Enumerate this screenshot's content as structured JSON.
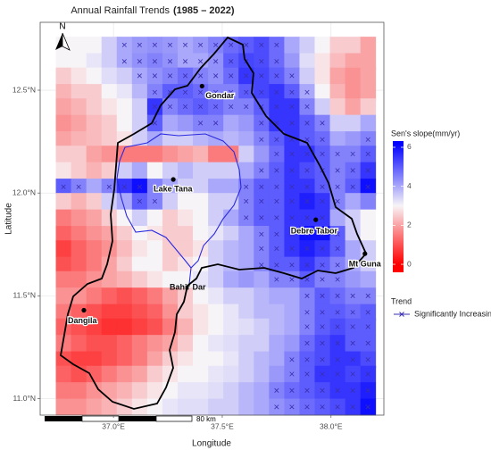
{
  "chart_data": {
    "type": "heatmap",
    "title": "Annual Rainfall Trends",
    "title_period": "(1985 – 2022)",
    "xlabel": "Longitude",
    "ylabel": "Latitude",
    "xlim": [
      36.663,
      38.243
    ],
    "ylim": [
      10.92,
      12.83
    ],
    "xticks": [
      {
        "value": 37.0,
        "label": "37.0°E"
      },
      {
        "value": 37.5,
        "label": "37.5°E"
      },
      {
        "value": 38.0,
        "label": "38.0°E"
      }
    ],
    "yticks": [
      {
        "value": 11.0,
        "label": "11.0°N"
      },
      {
        "value": 11.5,
        "label": "11.5°N"
      },
      {
        "value": 12.0,
        "label": "12.0°N"
      },
      {
        "value": 12.5,
        "label": "12.5°N"
      }
    ],
    "grid": true,
    "x": [
      36.77,
      36.84,
      36.91,
      36.98,
      37.05,
      37.12,
      37.19,
      37.26,
      37.33,
      37.4,
      37.47,
      37.54,
      37.61,
      37.68,
      37.75,
      37.82,
      37.89,
      37.96,
      38.03,
      38.1,
      38.17
    ],
    "y": [
      12.72,
      12.64,
      12.57,
      12.49,
      12.42,
      12.34,
      12.26,
      12.19,
      12.11,
      12.03,
      11.96,
      11.88,
      11.8,
      11.73,
      11.65,
      11.58,
      11.5,
      11.42,
      11.35,
      11.27,
      11.19,
      11.12,
      11.04,
      10.96
    ],
    "values": [
      [
        3,
        3,
        3,
        3.5,
        4,
        4.2,
        4.3,
        4.2,
        4,
        4.2,
        4.5,
        4.8,
        5,
        5.2,
        4.8,
        4,
        3.5,
        3,
        2.5,
        2.5,
        2
      ],
      [
        3,
        3,
        3.2,
        3.5,
        4,
        4.3,
        4.5,
        4.3,
        4,
        4,
        4.3,
        5,
        5.3,
        5.2,
        4.8,
        4.2,
        3.3,
        2.8,
        2.3,
        2,
        2
      ],
      [
        2.5,
        2.8,
        3,
        3.3,
        3.5,
        4,
        4.3,
        4.5,
        4.8,
        4.5,
        4.3,
        4.8,
        5.5,
        5.3,
        5,
        4.5,
        3.5,
        2.8,
        2,
        1.8,
        2
      ],
      [
        2.2,
        2.5,
        2.5,
        3,
        3.2,
        3.8,
        4.5,
        5,
        5,
        4.8,
        4.5,
        4.5,
        5,
        5.3,
        5.5,
        5,
        4,
        3,
        2.2,
        1.8,
        2
      ],
      [
        2,
        2.2,
        2.5,
        2.8,
        3,
        3.5,
        5.5,
        4.5,
        4.8,
        5,
        4.8,
        4.5,
        4.5,
        5,
        5.5,
        5.5,
        4.5,
        3.5,
        2.5,
        2,
        2.5
      ],
      [
        1.8,
        2,
        2.3,
        2.5,
        3,
        3.5,
        5,
        4,
        4.2,
        4.5,
        4.5,
        4,
        4.2,
        4.8,
        5.5,
        5.5,
        5,
        4.5,
        3.5,
        3.5,
        4
      ],
      [
        2,
        2.2,
        2.3,
        2.5,
        2.8,
        3.5,
        4,
        3.5,
        3.5,
        3.8,
        4,
        3.8,
        4,
        4.5,
        5,
        5.5,
        5,
        4.8,
        4,
        4.2,
        4.5
      ],
      [
        2.5,
        2.5,
        2,
        1.8,
        1.5,
        1.5,
        1.5,
        1.8,
        2,
        2.2,
        1.5,
        1.5,
        3.5,
        4.2,
        4.8,
        5.5,
        5.5,
        5,
        4.5,
        4.5,
        5
      ],
      [
        2.8,
        2.5,
        2.2,
        2.5,
        3.5,
        4,
        3,
        3.5,
        3.8,
        3.5,
        3.5,
        3.5,
        4,
        4.5,
        5,
        5.5,
        5.2,
        5,
        4.5,
        4.8,
        5.5
      ],
      [
        5,
        4.5,
        4,
        4.5,
        5.5,
        6,
        4.5,
        4,
        3.5,
        3.5,
        4,
        4,
        4.5,
        5,
        5,
        5.5,
        5.5,
        5,
        4.5,
        5,
        6
      ],
      [
        2.5,
        2.2,
        2.5,
        3.5,
        4,
        5,
        4.5,
        3.5,
        3,
        3,
        3.5,
        3.5,
        4.5,
        5,
        5,
        5.5,
        5.8,
        5.5,
        4.5,
        4,
        4.5
      ],
      [
        1.5,
        1.8,
        2,
        2.5,
        3,
        3.5,
        3,
        2.5,
        2.8,
        3,
        3.5,
        4,
        4.5,
        5,
        5,
        5.5,
        5.5,
        5.5,
        4,
        3.5,
        3
      ],
      [
        1.2,
        1.5,
        1.8,
        2,
        2.5,
        3,
        2.8,
        2.5,
        2.5,
        3,
        3.2,
        3.5,
        4,
        4.5,
        5,
        5.5,
        6,
        6,
        5,
        3.5,
        3
      ],
      [
        0.8,
        1.2,
        1.5,
        1.8,
        2.3,
        2.8,
        3,
        2.5,
        2.5,
        2.8,
        3.5,
        3.8,
        4,
        4.5,
        5,
        5.5,
        5.8,
        5.5,
        5,
        4,
        3.5
      ],
      [
        1,
        1.2,
        1.5,
        2,
        2.5,
        3,
        3,
        2.5,
        2.8,
        3,
        3.5,
        3.8,
        4,
        4.5,
        5,
        5,
        5.5,
        5,
        4.5,
        4,
        3.5
      ],
      [
        1.5,
        1.5,
        1.8,
        2,
        2.2,
        2.5,
        2.8,
        3,
        3,
        3.2,
        3.5,
        4,
        4.2,
        4,
        4.5,
        4.5,
        5,
        4.5,
        4.5,
        4.2,
        4
      ],
      [
        1.8,
        1.8,
        1.5,
        1.2,
        1,
        1.2,
        1.5,
        2,
        2.5,
        3,
        3.2,
        3.5,
        3.5,
        3.8,
        4,
        4,
        4.5,
        5,
        4.8,
        4.5,
        4.5
      ],
      [
        1.5,
        1.2,
        1,
        0.8,
        0.8,
        1,
        1.2,
        1.8,
        2.5,
        2.8,
        3,
        3.2,
        3.5,
        3.8,
        3.8,
        4,
        4.5,
        5,
        5,
        4.8,
        5
      ],
      [
        1.2,
        1,
        0.8,
        0.6,
        0.6,
        0.8,
        1,
        1.5,
        2.2,
        2.8,
        3,
        3.2,
        3.3,
        3.5,
        3.8,
        4,
        4.5,
        5,
        5.2,
        5,
        5
      ],
      [
        1.5,
        1.2,
        1,
        1,
        1.2,
        1.5,
        1.8,
        2,
        2.5,
        3,
        3.2,
        3.3,
        3.5,
        3.5,
        4,
        4.2,
        4.8,
        5.2,
        5.5,
        5,
        5
      ],
      [
        1,
        0.8,
        0.8,
        1,
        1.2,
        1.5,
        2,
        2.5,
        2.8,
        3,
        3,
        3.2,
        3.5,
        3.8,
        4,
        4.5,
        5,
        5.2,
        5.5,
        5.5,
        5.2
      ],
      [
        1.2,
        1,
        1.2,
        1.5,
        1.8,
        2,
        2.5,
        2.8,
        3,
        3,
        3.2,
        3.3,
        3.5,
        3.8,
        4.2,
        4.5,
        5,
        5.5,
        5.5,
        5.3,
        5.5
      ],
      [
        1.5,
        1.5,
        1.8,
        2,
        2.2,
        2.5,
        2.8,
        3,
        3.2,
        3.2,
        3.3,
        3.5,
        3.8,
        4,
        4.5,
        4.8,
        5,
        5.2,
        5.5,
        5.5,
        5.8
      ],
      [
        1.8,
        1.8,
        2,
        2.2,
        2.5,
        2.8,
        3,
        3.2,
        3.3,
        3.3,
        3.5,
        3.5,
        3.8,
        4,
        4.3,
        4.5,
        4.8,
        5,
        5.2,
        5.5,
        6
      ]
    ],
    "significant": [
      [
        0,
        0,
        0,
        0,
        1,
        1,
        1,
        1,
        1,
        1,
        1,
        1,
        1,
        1,
        1,
        0,
        0,
        0,
        0,
        0,
        0
      ],
      [
        0,
        0,
        0,
        0,
        1,
        1,
        1,
        1,
        1,
        1,
        1,
        1,
        1,
        1,
        1,
        0,
        0,
        0,
        0,
        0,
        0
      ],
      [
        0,
        0,
        0,
        0,
        0,
        1,
        1,
        1,
        1,
        1,
        1,
        1,
        1,
        1,
        1,
        1,
        0,
        0,
        0,
        0,
        0
      ],
      [
        0,
        0,
        0,
        0,
        0,
        0,
        1,
        1,
        1,
        1,
        1,
        1,
        1,
        1,
        1,
        1,
        1,
        0,
        0,
        0,
        0
      ],
      [
        0,
        0,
        0,
        0,
        0,
        0,
        1,
        1,
        1,
        1,
        1,
        1,
        1,
        1,
        1,
        1,
        1,
        0,
        0,
        0,
        0
      ],
      [
        0,
        0,
        0,
        0,
        0,
        0,
        1,
        0,
        0,
        1,
        1,
        0,
        0,
        1,
        1,
        1,
        1,
        1,
        0,
        0,
        0
      ],
      [
        0,
        0,
        0,
        0,
        0,
        0,
        0,
        0,
        0,
        0,
        0,
        0,
        0,
        1,
        1,
        1,
        1,
        1,
        0,
        0,
        1
      ],
      [
        0,
        0,
        0,
        0,
        0,
        0,
        0,
        0,
        0,
        0,
        0,
        0,
        0,
        0,
        1,
        1,
        1,
        1,
        1,
        1,
        1
      ],
      [
        0,
        0,
        0,
        0,
        0,
        0,
        0,
        0,
        0,
        0,
        0,
        0,
        0,
        1,
        1,
        1,
        1,
        1,
        1,
        1,
        1
      ],
      [
        1,
        1,
        0,
        1,
        1,
        1,
        1,
        0,
        0,
        0,
        0,
        0,
        1,
        1,
        1,
        1,
        1,
        1,
        1,
        1,
        1
      ],
      [
        0,
        0,
        0,
        0,
        0,
        1,
        1,
        0,
        0,
        0,
        0,
        0,
        1,
        1,
        1,
        1,
        1,
        1,
        1,
        0,
        0
      ],
      [
        0,
        0,
        0,
        0,
        0,
        0,
        0,
        0,
        0,
        0,
        0,
        0,
        1,
        1,
        1,
        1,
        1,
        1,
        0,
        0,
        0
      ],
      [
        0,
        0,
        0,
        0,
        0,
        0,
        0,
        0,
        0,
        0,
        0,
        0,
        0,
        1,
        1,
        1,
        1,
        1,
        1,
        0,
        0
      ],
      [
        0,
        0,
        0,
        0,
        0,
        0,
        0,
        0,
        0,
        0,
        0,
        0,
        0,
        1,
        1,
        1,
        1,
        1,
        1,
        0,
        0
      ],
      [
        0,
        0,
        0,
        0,
        0,
        0,
        0,
        0,
        0,
        0,
        0,
        0,
        0,
        1,
        1,
        1,
        1,
        1,
        1,
        0,
        0
      ],
      [
        0,
        0,
        0,
        0,
        0,
        0,
        0,
        0,
        0,
        0,
        0,
        0,
        0,
        0,
        1,
        1,
        1,
        1,
        1,
        0,
        0
      ],
      [
        0,
        0,
        0,
        0,
        0,
        0,
        0,
        0,
        0,
        0,
        0,
        0,
        0,
        0,
        0,
        0,
        1,
        1,
        1,
        1,
        1
      ],
      [
        0,
        0,
        0,
        0,
        0,
        0,
        0,
        0,
        0,
        0,
        0,
        0,
        0,
        0,
        0,
        0,
        1,
        1,
        1,
        1,
        1
      ],
      [
        0,
        0,
        0,
        0,
        0,
        0,
        0,
        0,
        0,
        0,
        0,
        0,
        0,
        0,
        0,
        0,
        1,
        1,
        1,
        1,
        1
      ],
      [
        0,
        0,
        0,
        0,
        0,
        0,
        0,
        0,
        0,
        0,
        0,
        0,
        0,
        0,
        0,
        0,
        1,
        1,
        1,
        1,
        1
      ],
      [
        0,
        0,
        0,
        0,
        0,
        0,
        0,
        0,
        0,
        0,
        0,
        0,
        0,
        0,
        0,
        1,
        1,
        1,
        1,
        1,
        1
      ],
      [
        0,
        0,
        0,
        0,
        0,
        0,
        0,
        0,
        0,
        0,
        0,
        0,
        0,
        0,
        0,
        1,
        1,
        1,
        1,
        1,
        1
      ],
      [
        0,
        0,
        0,
        0,
        0,
        0,
        0,
        0,
        0,
        0,
        0,
        0,
        0,
        0,
        1,
        1,
        1,
        1,
        1,
        1,
        1
      ],
      [
        0,
        0,
        0,
        0,
        0,
        0,
        0,
        0,
        0,
        0,
        0,
        0,
        0,
        0,
        1,
        1,
        1,
        1,
        1,
        1,
        1
      ]
    ],
    "color_stops": [
      {
        "value": 0,
        "color": "#ff0000"
      },
      {
        "value": 3,
        "color": "#f7f4f7"
      },
      {
        "value": 6.2,
        "color": "#0000ff"
      }
    ],
    "marker_color": "#3a2fb0",
    "colorbar_title": "Sen's slope(mm/yr)",
    "colorbar_lim": [
      -0.41,
      6.32
    ],
    "colorbar_ticks": [
      0,
      2,
      4,
      6
    ],
    "legend_title": "Trend",
    "legend_entry": "Significantly Increasing",
    "places": [
      {
        "label": "Gondar",
        "lon": 37.407,
        "lat": 12.52
      },
      {
        "label": "Lake Tana",
        "lon": 37.275,
        "lat": 12.066
      },
      {
        "label": "Debre Tabor",
        "lon": 37.93,
        "lat": 11.87
      },
      {
        "label": "Mt Guna",
        "lon": 38.156,
        "lat": 11.705
      },
      {
        "label": "Dangila",
        "lon": 36.864,
        "lat": 11.43
      }
    ],
    "annotation": "Bahir Dar",
    "north_label": "N",
    "scale_label": "80 km"
  }
}
